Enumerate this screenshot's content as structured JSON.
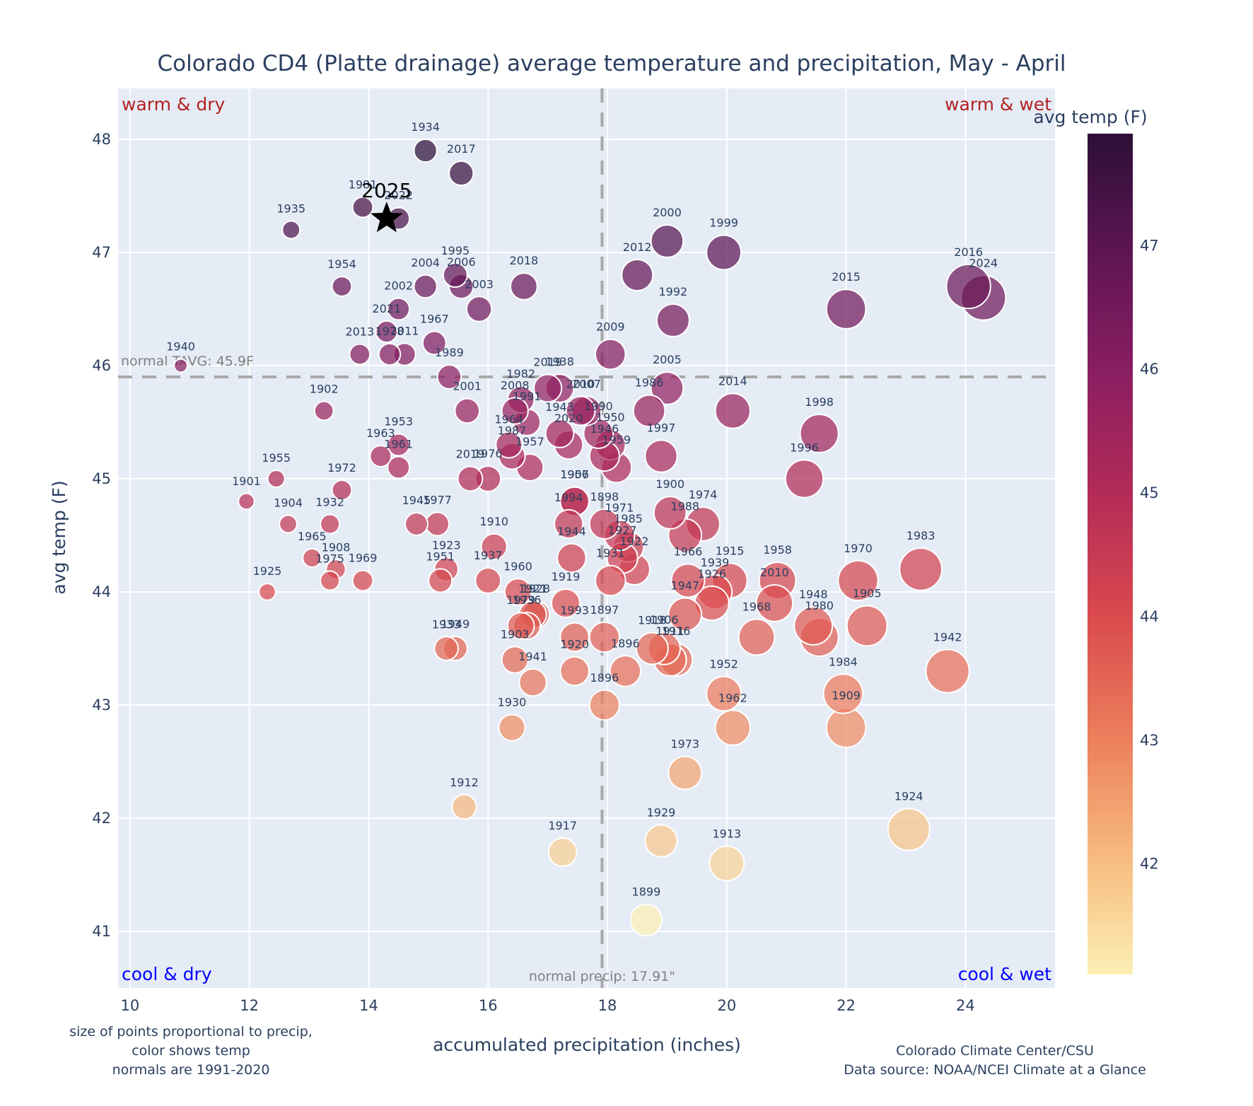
{
  "chart_data": {
    "type": "scatter",
    "title": "Colorado CD4 (Platte drainage) average temperature and precipitation, May - April",
    "xlabel": "accumulated precipitation (inches)",
    "ylabel": "avg temp (F)",
    "xlim": [
      9.8,
      25.5
    ],
    "ylim": [
      40.5,
      48.45
    ],
    "x_ticks": [
      10,
      12,
      14,
      16,
      18,
      20,
      22,
      24
    ],
    "y_ticks": [
      41,
      42,
      43,
      44,
      45,
      46,
      47,
      48
    ],
    "grid": true,
    "colorbar": {
      "title": "avg temp (F)",
      "ticks": [
        42,
        43,
        44,
        45,
        46,
        47
      ],
      "range": [
        41.1,
        47.9
      ],
      "colorscale": [
        "#fcefb4",
        "#f6b97e",
        "#ec7d5b",
        "#d9494e",
        "#b32b58",
        "#8b1e62",
        "#5e1554",
        "#2d0f37"
      ]
    },
    "normals": {
      "temp": 45.9,
      "temp_label": "normal TAVG: 45.9F",
      "precip": 17.91,
      "precip_label": "normal precip: 17.91\""
    },
    "quadrant_labels": {
      "top_left": "warm & dry",
      "top_right": "warm & wet",
      "bottom_left": "cool & dry",
      "bottom_right": "cool & wet"
    },
    "highlight": {
      "label": "2025",
      "x": 14.3,
      "y": 47.3,
      "marker": "star"
    },
    "notes_left": [
      "size of points proportional to precip,",
      "color shows temp",
      "normals are 1991-2020"
    ],
    "notes_right": [
      "Colorado Climate Center/CSU",
      "Data source: NOAA/NCEI Climate at a Glance"
    ],
    "points": [
      {
        "year": "1934",
        "x": 14.95,
        "y": 47.9
      },
      {
        "year": "2017",
        "x": 15.55,
        "y": 47.7
      },
      {
        "year": "1981",
        "x": 13.9,
        "y": 47.4
      },
      {
        "year": "2022",
        "x": 14.5,
        "y": 47.3
      },
      {
        "year": "1935",
        "x": 12.7,
        "y": 47.2
      },
      {
        "year": "1954",
        "x": 13.55,
        "y": 46.7
      },
      {
        "year": "2004",
        "x": 14.95,
        "y": 46.7
      },
      {
        "year": "1995",
        "x": 15.45,
        "y": 46.8
      },
      {
        "year": "2006",
        "x": 15.55,
        "y": 46.7
      },
      {
        "year": "2003",
        "x": 15.85,
        "y": 46.5
      },
      {
        "year": "2018",
        "x": 16.6,
        "y": 46.7
      },
      {
        "year": "2002",
        "x": 14.5,
        "y": 46.5
      },
      {
        "year": "2021",
        "x": 14.3,
        "y": 46.3
      },
      {
        "year": "2013",
        "x": 13.85,
        "y": 46.1
      },
      {
        "year": "1978",
        "x": 14.35,
        "y": 46.1
      },
      {
        "year": "2011",
        "x": 14.6,
        "y": 46.1
      },
      {
        "year": "1967",
        "x": 15.1,
        "y": 46.2
      },
      {
        "year": "1989",
        "x": 15.35,
        "y": 45.9
      },
      {
        "year": "1940",
        "x": 10.85,
        "y": 46.0
      },
      {
        "year": "1902",
        "x": 13.25,
        "y": 45.6
      },
      {
        "year": "2001",
        "x": 15.65,
        "y": 45.6
      },
      {
        "year": "2009",
        "x": 18.05,
        "y": 46.1
      },
      {
        "year": "2012",
        "x": 18.5,
        "y": 46.8
      },
      {
        "year": "2000",
        "x": 19.0,
        "y": 47.1
      },
      {
        "year": "1999",
        "x": 19.95,
        "y": 47.0
      },
      {
        "year": "1992",
        "x": 19.1,
        "y": 46.4
      },
      {
        "year": "2005",
        "x": 19.0,
        "y": 45.8
      },
      {
        "year": "2014",
        "x": 20.1,
        "y": 45.6
      },
      {
        "year": "2015",
        "x": 22.0,
        "y": 46.5
      },
      {
        "year": "2016",
        "x": 24.05,
        "y": 46.7
      },
      {
        "year": "2024",
        "x": 24.3,
        "y": 46.6
      },
      {
        "year": "1998",
        "x": 21.55,
        "y": 45.4
      },
      {
        "year": "1996",
        "x": 21.3,
        "y": 45.0
      },
      {
        "year": "1986",
        "x": 18.7,
        "y": 45.6
      },
      {
        "year": "1997",
        "x": 18.9,
        "y": 45.2
      },
      {
        "year": "2011b",
        "label": "2019",
        "x": 17.0,
        "y": 45.8
      },
      {
        "year": "1982",
        "x": 16.55,
        "y": 45.7
      },
      {
        "year": "2008",
        "x": 16.45,
        "y": 45.6
      },
      {
        "year": "1991",
        "x": 16.65,
        "y": 45.5
      },
      {
        "year": "1938",
        "x": 17.2,
        "y": 45.8
      },
      {
        "year": "1943",
        "x": 17.2,
        "y": 45.4
      },
      {
        "year": "2010b",
        "label": "1940b",
        "x": 17.55,
        "y": 45.6
      },
      {
        "year": "2007",
        "x": 17.65,
        "y": 45.6
      },
      {
        "year": "1990",
        "x": 17.85,
        "y": 45.4
      },
      {
        "year": "2020",
        "x": 17.35,
        "y": 45.3
      },
      {
        "year": "1950",
        "x": 18.05,
        "y": 45.3
      },
      {
        "year": "1946",
        "x": 17.95,
        "y": 45.2
      },
      {
        "year": "1959",
        "x": 18.15,
        "y": 45.1
      },
      {
        "year": "1964",
        "x": 16.35,
        "y": 45.3
      },
      {
        "year": "1987",
        "x": 16.4,
        "y": 45.2
      },
      {
        "year": "1957",
        "x": 16.7,
        "y": 45.1
      },
      {
        "year": "1907",
        "x": 17.45,
        "y": 44.8
      },
      {
        "year": "1953",
        "x": 14.5,
        "y": 45.3
      },
      {
        "year": "1963",
        "x": 14.2,
        "y": 45.2
      },
      {
        "year": "1961",
        "x": 14.5,
        "y": 45.1
      },
      {
        "year": "2019",
        "label": "2019",
        "x": 15.7,
        "y": 45.0
      },
      {
        "year": "1976",
        "x": 16.0,
        "y": 45.0
      },
      {
        "year": "1955",
        "x": 12.45,
        "y": 45.0
      },
      {
        "year": "1901",
        "x": 11.95,
        "y": 44.8
      },
      {
        "year": "1972",
        "x": 13.55,
        "y": 44.9
      },
      {
        "year": "1904",
        "x": 12.65,
        "y": 44.6
      },
      {
        "year": "1932",
        "x": 13.35,
        "y": 44.6
      },
      {
        "year": "1945",
        "x": 14.8,
        "y": 44.6
      },
      {
        "year": "1977",
        "x": 15.15,
        "y": 44.6
      },
      {
        "year": "1965",
        "x": 13.05,
        "y": 44.3
      },
      {
        "year": "1908",
        "x": 13.45,
        "y": 44.2
      },
      {
        "year": "1975",
        "x": 13.35,
        "y": 44.1
      },
      {
        "year": "1969",
        "x": 13.9,
        "y": 44.1
      },
      {
        "year": "1925",
        "x": 12.3,
        "y": 44.0
      },
      {
        "year": "1923",
        "x": 15.3,
        "y": 44.2
      },
      {
        "year": "1951",
        "x": 15.2,
        "y": 44.1
      },
      {
        "year": "1910",
        "x": 16.1,
        "y": 44.4
      },
      {
        "year": "1937",
        "x": 16.0,
        "y": 44.1
      },
      {
        "year": "1960",
        "x": 16.5,
        "y": 44.0
      },
      {
        "year": "1921",
        "x": 16.75,
        "y": 43.8
      },
      {
        "year": "1928",
        "x": 16.8,
        "y": 43.8
      },
      {
        "year": "1936",
        "x": 16.65,
        "y": 43.7
      },
      {
        "year": "1956",
        "x": 17.45,
        "y": 44.8
      },
      {
        "year": "1994",
        "x": 17.35,
        "y": 44.6
      },
      {
        "year": "1944",
        "x": 17.4,
        "y": 44.3
      },
      {
        "year": "1919",
        "x": 17.3,
        "y": 43.9
      },
      {
        "year": "1898",
        "x": 17.95,
        "y": 44.6
      },
      {
        "year": "1971",
        "x": 18.2,
        "y": 44.5
      },
      {
        "year": "1985",
        "x": 18.35,
        "y": 44.4
      },
      {
        "year": "1927",
        "x": 18.25,
        "y": 44.3
      },
      {
        "year": "1922",
        "x": 18.45,
        "y": 44.2
      },
      {
        "year": "1931",
        "x": 18.05,
        "y": 44.1
      },
      {
        "year": "1993",
        "x": 17.45,
        "y": 43.6
      },
      {
        "year": "1900",
        "x": 19.05,
        "y": 44.7
      },
      {
        "year": "1974",
        "x": 19.6,
        "y": 44.6
      },
      {
        "year": "1988",
        "x": 19.3,
        "y": 44.5
      },
      {
        "year": "1966",
        "x": 19.35,
        "y": 44.1
      },
      {
        "year": "1947",
        "x": 19.3,
        "y": 43.8
      },
      {
        "year": "1915",
        "x": 20.05,
        "y": 44.1
      },
      {
        "year": "1939",
        "x": 19.8,
        "y": 44.0
      },
      {
        "year": "1926",
        "x": 19.75,
        "y": 43.9
      },
      {
        "year": "1958",
        "x": 20.85,
        "y": 44.1
      },
      {
        "year": "2010",
        "x": 20.8,
        "y": 43.9
      },
      {
        "year": "1968",
        "x": 20.5,
        "y": 43.6
      },
      {
        "year": "1948",
        "x": 21.45,
        "y": 43.7
      },
      {
        "year": "1980",
        "x": 21.55,
        "y": 43.6
      },
      {
        "year": "1970",
        "x": 22.2,
        "y": 44.1
      },
      {
        "year": "1905",
        "x": 22.35,
        "y": 43.7
      },
      {
        "year": "1983",
        "x": 23.25,
        "y": 44.2
      },
      {
        "year": "1942",
        "x": 23.7,
        "y": 43.3
      },
      {
        "year": "1918",
        "x": 18.75,
        "y": 43.5
      },
      {
        "year": "1906",
        "x": 18.95,
        "y": 43.5
      },
      {
        "year": "1911",
        "x": 19.05,
        "y": 43.4
      },
      {
        "year": "1916",
        "x": 19.15,
        "y": 43.4
      },
      {
        "year": "1979",
        "x": 16.55,
        "y": 43.7
      },
      {
        "year": "1920",
        "x": 17.45,
        "y": 43.3
      },
      {
        "year": "1897",
        "x": 17.95,
        "y": 43.6
      },
      {
        "year": "1903",
        "x": 16.45,
        "y": 43.4
      },
      {
        "year": "1941",
        "x": 16.75,
        "y": 43.2
      },
      {
        "year": "1896b",
        "x": 18.3,
        "y": 43.3
      },
      {
        "year": "1896",
        "x": 17.95,
        "y": 43.0
      },
      {
        "year": "1930",
        "x": 16.4,
        "y": 42.8
      },
      {
        "year": "1933",
        "x": 15.3,
        "y": 43.5
      },
      {
        "year": "1949",
        "x": 15.45,
        "y": 43.5
      },
      {
        "year": "1952",
        "x": 19.95,
        "y": 43.1
      },
      {
        "year": "1962",
        "x": 20.1,
        "y": 42.8
      },
      {
        "year": "1984",
        "x": 21.95,
        "y": 43.1
      },
      {
        "year": "1909",
        "x": 22.0,
        "y": 42.8
      },
      {
        "year": "1973",
        "x": 19.3,
        "y": 42.4
      },
      {
        "year": "1912",
        "x": 15.6,
        "y": 42.1
      },
      {
        "year": "1917",
        "x": 17.25,
        "y": 41.7
      },
      {
        "year": "1929",
        "x": 18.9,
        "y": 41.8
      },
      {
        "year": "1913",
        "x": 20.0,
        "y": 41.6
      },
      {
        "year": "1924",
        "x": 23.05,
        "y": 41.9
      },
      {
        "year": "1899",
        "x": 18.65,
        "y": 41.1
      }
    ]
  }
}
